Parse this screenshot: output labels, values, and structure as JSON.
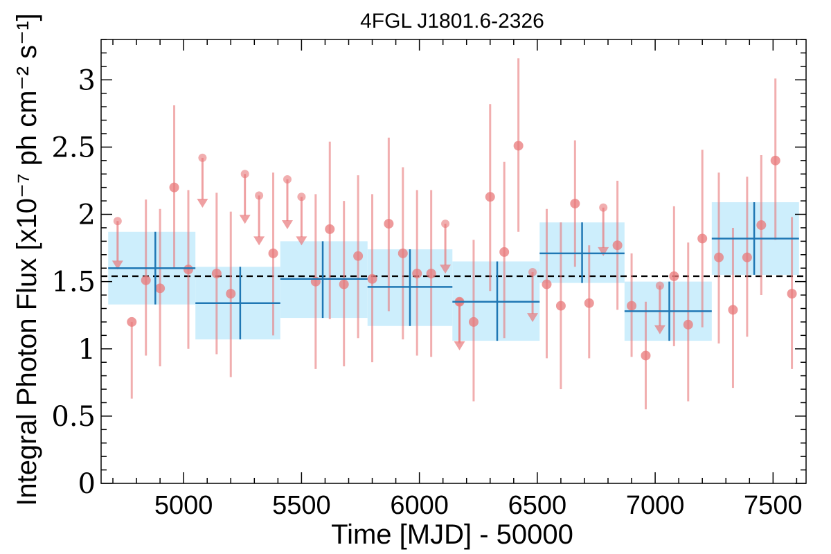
{
  "chart_data": {
    "type": "scatter",
    "title": "4FGL J1801.6-2326",
    "xlabel": "Time [MJD] - 50000",
    "ylabel": "Integral Photon Flux [x10⁻⁷ ph cm⁻² s⁻¹]",
    "xlim": [
      4650,
      7640
    ],
    "ylim": [
      0,
      3.3
    ],
    "x_ticks": [
      5000,
      5500,
      6000,
      6500,
      7000,
      7500
    ],
    "y_ticks": [
      0,
      0.5,
      1,
      1.5,
      2,
      2.5,
      3
    ],
    "y_tick_labels": [
      "0",
      "0.5",
      "1",
      "1.5",
      "2",
      "2.5",
      "3"
    ],
    "mean_flux": 1.54,
    "colors": {
      "points": "#e8787a",
      "bins": "#1f77b4",
      "bands": "#cdeefc",
      "mean_line": "#000000"
    },
    "series": [
      {
        "kind": "short_bin_detections",
        "points": [
          {
            "x": 4780,
            "y": 1.2,
            "lo": 0.63,
            "hi": 1.2
          },
          {
            "x": 4840,
            "y": 1.51,
            "lo": 0.95,
            "hi": 2.11
          },
          {
            "x": 4900,
            "y": 1.45,
            "lo": 0.87,
            "hi": 2.04
          },
          {
            "x": 4960,
            "y": 2.2,
            "lo": 1.6,
            "hi": 2.81
          },
          {
            "x": 5020,
            "y": 1.59,
            "lo": 1.0,
            "hi": 2.18
          },
          {
            "x": 5140,
            "y": 1.56,
            "lo": 0.96,
            "hi": 2.16
          },
          {
            "x": 5200,
            "y": 1.41,
            "lo": 0.79,
            "hi": 2.02
          },
          {
            "x": 5380,
            "y": 1.71,
            "lo": 1.1,
            "hi": 2.31
          },
          {
            "x": 5560,
            "y": 1.5,
            "lo": 0.85,
            "hi": 2.15
          },
          {
            "x": 5620,
            "y": 1.89,
            "lo": 1.22,
            "hi": 2.54
          },
          {
            "x": 5680,
            "y": 1.48,
            "lo": 0.87,
            "hi": 2.1
          },
          {
            "x": 5740,
            "y": 1.69,
            "lo": 1.08,
            "hi": 2.29
          },
          {
            "x": 5800,
            "y": 1.52,
            "lo": 0.9,
            "hi": 2.15
          },
          {
            "x": 5870,
            "y": 1.93,
            "lo": 1.28,
            "hi": 2.57
          },
          {
            "x": 5930,
            "y": 1.71,
            "lo": 1.07,
            "hi": 2.35
          },
          {
            "x": 5990,
            "y": 1.56,
            "lo": 0.95,
            "hi": 2.18
          },
          {
            "x": 6050,
            "y": 1.56,
            "lo": 0.94,
            "hi": 2.18
          },
          {
            "x": 6170,
            "y": 1.35,
            "lo": 1.04,
            "hi": 1.35
          },
          {
            "x": 6230,
            "y": 1.2,
            "lo": 0.61,
            "hi": 1.81
          },
          {
            "x": 6300,
            "y": 2.13,
            "lo": 1.43,
            "hi": 2.82
          },
          {
            "x": 6360,
            "y": 1.72,
            "lo": 1.08,
            "hi": 2.39
          },
          {
            "x": 6420,
            "y": 2.51,
            "lo": 1.87,
            "hi": 3.16
          },
          {
            "x": 6540,
            "y": 1.48,
            "lo": 0.93,
            "hi": 2.04
          },
          {
            "x": 6600,
            "y": 1.32,
            "lo": 0.7,
            "hi": 1.94
          },
          {
            "x": 6660,
            "y": 2.08,
            "lo": 1.61,
            "hi": 2.55
          },
          {
            "x": 6720,
            "y": 1.34,
            "lo": 0.93,
            "hi": 1.77
          },
          {
            "x": 6840,
            "y": 1.77,
            "lo": 1.29,
            "hi": 2.25
          },
          {
            "x": 6900,
            "y": 1.32,
            "lo": 0.94,
            "hi": 1.71
          },
          {
            "x": 6960,
            "y": 0.95,
            "lo": 0.55,
            "hi": 1.35
          },
          {
            "x": 7080,
            "y": 1.54,
            "lo": 1.02,
            "hi": 2.06
          },
          {
            "x": 7140,
            "y": 1.18,
            "lo": 0.61,
            "hi": 1.79
          },
          {
            "x": 7200,
            "y": 1.82,
            "lo": 1.16,
            "hi": 2.48
          },
          {
            "x": 7270,
            "y": 1.68,
            "lo": 1.04,
            "hi": 2.31
          },
          {
            "x": 7330,
            "y": 1.29,
            "lo": 0.71,
            "hi": 1.9
          },
          {
            "x": 7390,
            "y": 1.68,
            "lo": 1.09,
            "hi": 2.28
          },
          {
            "x": 7450,
            "y": 1.92,
            "lo": 1.4,
            "hi": 2.44
          },
          {
            "x": 7510,
            "y": 2.4,
            "lo": 1.81,
            "hi": 3.01
          },
          {
            "x": 7580,
            "y": 1.41,
            "lo": 0.85,
            "hi": 1.98
          }
        ]
      },
      {
        "kind": "short_bin_upper_limits",
        "points": [
          {
            "x": 4720,
            "y": 1.95,
            "limit_to": 1.62
          },
          {
            "x": 5080,
            "y": 2.42,
            "limit_to": 2.08
          },
          {
            "x": 5260,
            "y": 2.3,
            "limit_to": 1.96
          },
          {
            "x": 5320,
            "y": 2.14,
            "limit_to": 1.8
          },
          {
            "x": 5440,
            "y": 2.26,
            "limit_to": 1.92
          },
          {
            "x": 5500,
            "y": 2.13,
            "limit_to": 1.8
          },
          {
            "x": 6110,
            "y": 1.93,
            "limit_to": 1.59
          },
          {
            "x": 6170,
            "y": 1.35,
            "limit_to": 1.02
          },
          {
            "x": 6480,
            "y": 1.57,
            "limit_to": 1.23
          },
          {
            "x": 6780,
            "y": 2.05,
            "limit_to": 1.72
          },
          {
            "x": 7020,
            "y": 1.47,
            "limit_to": 1.14
          }
        ]
      },
      {
        "kind": "long_bins",
        "bins": [
          {
            "x0": 4680,
            "x1": 5050,
            "xc": 4880,
            "y": 1.6,
            "lo": 1.33,
            "hi": 1.87
          },
          {
            "x0": 5050,
            "x1": 5410,
            "xc": 5240,
            "y": 1.34,
            "lo": 1.07,
            "hi": 1.61
          },
          {
            "x0": 5410,
            "x1": 5780,
            "xc": 5590,
            "y": 1.52,
            "lo": 1.23,
            "hi": 1.8
          },
          {
            "x0": 5780,
            "x1": 6140,
            "xc": 5960,
            "y": 1.46,
            "lo": 1.17,
            "hi": 1.74
          },
          {
            "x0": 6140,
            "x1": 6510,
            "xc": 6330,
            "y": 1.35,
            "lo": 1.06,
            "hi": 1.65
          },
          {
            "x0": 6510,
            "x1": 6870,
            "xc": 6690,
            "y": 1.71,
            "lo": 1.49,
            "hi": 1.94
          },
          {
            "x0": 6870,
            "x1": 7240,
            "xc": 7060,
            "y": 1.28,
            "lo": 1.06,
            "hi": 1.5
          },
          {
            "x0": 7240,
            "x1": 7610,
            "xc": 7420,
            "y": 1.82,
            "lo": 1.55,
            "hi": 2.09
          }
        ]
      }
    ]
  }
}
